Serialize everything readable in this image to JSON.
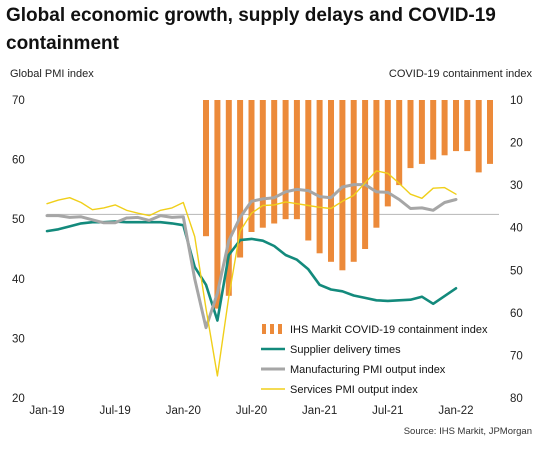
{
  "title": "Global economic growth, supply delays and COVID-19 containment",
  "left_axis_title": "Global PMI index",
  "right_axis_title": "COVID-19 containment index",
  "source": "Source: IHS Markit, JPMorgan",
  "colors": {
    "containment": "#ec8a3a",
    "services": "#138a7c",
    "manufacturing": "#a6a6a6",
    "supplier": "#f0cf1a",
    "reference": "#bfbfbf"
  },
  "chart_data": {
    "type": "bar",
    "x_tick_labels": [
      "Jan-19",
      "Jul-19",
      "Jan-20",
      "Jul-20",
      "Jan-21",
      "Jul-21",
      "Jan-22"
    ],
    "x_tick_months": [
      0,
      6,
      12,
      18,
      24,
      30,
      36
    ],
    "y_left_ticks": [
      20,
      30,
      40,
      50,
      60,
      70
    ],
    "y_left_range": [
      20,
      70
    ],
    "y_right_ticks": [
      10,
      20,
      30,
      40,
      50,
      60,
      70,
      80
    ],
    "y_right_range": [
      80,
      10
    ],
    "y_right_inverted": true,
    "reference_line_y": 50.8,
    "series": [
      {
        "name": "IHS Markit COVID-19 containment index",
        "type": "bar",
        "axis": "right",
        "start_month": 14,
        "values": [
          42,
          59,
          56,
          47,
          41,
          40,
          39,
          38,
          38,
          43,
          46,
          48,
          50,
          48,
          45,
          40,
          35,
          30,
          26,
          25,
          24,
          23,
          22,
          22,
          27,
          25
        ]
      },
      {
        "name": "Services PMI output index",
        "type": "line",
        "axis": "left",
        "months": [
          0,
          1,
          2,
          3,
          4,
          5,
          6,
          7,
          8,
          9,
          10,
          11,
          12,
          13,
          14,
          15,
          16,
          17,
          18,
          19,
          20,
          21,
          22,
          23,
          24,
          25,
          26,
          27,
          28,
          29,
          30,
          31,
          32,
          33,
          34,
          35,
          36
        ],
        "values": [
          52.6,
          53.2,
          53.6,
          52.8,
          51.6,
          51.9,
          52.4,
          51.5,
          51.0,
          50.6,
          51.5,
          51.9,
          52.8,
          47.1,
          35.0,
          23.7,
          37.0,
          48.0,
          51.0,
          52.3,
          52.4,
          52.9,
          52.6,
          52.3,
          52.0,
          51.8,
          53.0,
          54.0,
          56.1,
          58.1,
          57.7,
          56.0,
          54.2,
          53.5,
          55.2,
          55.3,
          54.2
        ]
      },
      {
        "name": "Manufacturing PMI output index",
        "type": "line",
        "axis": "left",
        "months": [
          0,
          1,
          2,
          3,
          4,
          5,
          6,
          7,
          8,
          9,
          10,
          11,
          12,
          13,
          14,
          15,
          16,
          17,
          18,
          19,
          20,
          21,
          22,
          23,
          24,
          25,
          26,
          27,
          28,
          29,
          30,
          31,
          32,
          33,
          34,
          35,
          36
        ],
        "values": [
          50.6,
          50.6,
          50.3,
          50.4,
          49.9,
          49.4,
          49.4,
          50.2,
          50.3,
          49.8,
          50.6,
          50.3,
          50.4,
          40.0,
          31.8,
          37.6,
          46.4,
          50.3,
          53.0,
          53.4,
          53.6,
          54.6,
          55.0,
          54.8,
          53.8,
          53.6,
          55.4,
          55.8,
          55.8,
          54.6,
          54.5,
          53.3,
          51.8,
          51.9,
          51.5,
          52.8,
          53.3
        ]
      },
      {
        "name": "Supplier delivery times",
        "type": "line",
        "axis": "left",
        "months": [
          0,
          1,
          2,
          3,
          4,
          5,
          6,
          7,
          8,
          9,
          10,
          11,
          12,
          13,
          14,
          15,
          16,
          17,
          18,
          19,
          20,
          21,
          22,
          23,
          24,
          25,
          26,
          27,
          28,
          29,
          30,
          31,
          32,
          33,
          34,
          35,
          36
        ],
        "values": [
          48.0,
          48.3,
          48.8,
          49.3,
          49.5,
          49.5,
          49.6,
          49.5,
          49.5,
          49.5,
          49.5,
          49.3,
          49.0,
          42.0,
          39.0,
          33.0,
          44.0,
          46.5,
          46.7,
          46.4,
          45.5,
          44.0,
          43.2,
          41.6,
          39.0,
          38.2,
          37.9,
          37.2,
          36.8,
          36.4,
          36.3,
          36.4,
          36.5,
          37.0,
          35.8,
          37.1,
          38.4
        ]
      }
    ],
    "legend_placement": "bottom-center",
    "grid": false
  }
}
